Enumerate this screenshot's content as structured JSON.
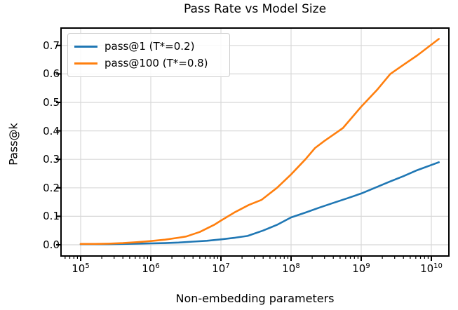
{
  "figure": {
    "title": "Pass Rate vs Model Size",
    "xlabel": "Non-embedding parameters",
    "ylabel": "Pass@k"
  },
  "colors": {
    "pass1_line": "#1f77b4",
    "pass100_line": "#ff7f0e",
    "grid": "#d8d8d8",
    "spine": "#000000",
    "legend_border": "#cccccc",
    "text": "#000000"
  },
  "chart_data": {
    "type": "line",
    "title": "Pass Rate vs Model Size",
    "xlabel": "Non-embedding parameters",
    "ylabel": "Pass@k",
    "xscale": "log",
    "grid": true,
    "legend_position": "upper left",
    "xlim_log": [
      4.72,
      10.25
    ],
    "ylim": [
      -0.0394,
      0.7611
    ],
    "x_tick_base": "10",
    "x_tick_exponents": [
      5,
      6,
      7,
      8,
      9,
      10
    ],
    "y_ticks": [
      "0.0",
      "0.1",
      "0.2",
      "0.3",
      "0.4",
      "0.5",
      "0.6",
      "0.7"
    ],
    "series": [
      {
        "name": "pass@1 (T*=0.2)",
        "color": "#1f77b4",
        "points": [
          [
            100000,
            0.002
          ],
          [
            160000,
            0.002
          ],
          [
            250000,
            0.002
          ],
          [
            400000,
            0.003
          ],
          [
            630000,
            0.004
          ],
          [
            1000000,
            0.005
          ],
          [
            1600000,
            0.006
          ],
          [
            2500000,
            0.008
          ],
          [
            4000000,
            0.011
          ],
          [
            6300000,
            0.014
          ],
          [
            10000000,
            0.019
          ],
          [
            16000000,
            0.025
          ],
          [
            24000000,
            0.031
          ],
          [
            40000000,
            0.05
          ],
          [
            63000000,
            0.07
          ],
          [
            100000000,
            0.096
          ],
          [
            160000000,
            0.113
          ],
          [
            250000000,
            0.13
          ],
          [
            400000000,
            0.147
          ],
          [
            630000000,
            0.163
          ],
          [
            1000000000,
            0.18
          ],
          [
            1600000000,
            0.201
          ],
          [
            2500000000,
            0.221
          ],
          [
            4000000000,
            0.241
          ],
          [
            6300000000,
            0.262
          ],
          [
            12800000000,
            0.29
          ]
        ]
      },
      {
        "name": "pass@100 (T*=0.8)",
        "color": "#ff7f0e",
        "points": [
          [
            100000,
            0.003
          ],
          [
            160000,
            0.003
          ],
          [
            250000,
            0.004
          ],
          [
            400000,
            0.006
          ],
          [
            630000,
            0.009
          ],
          [
            1000000,
            0.013
          ],
          [
            1600000,
            0.018
          ],
          [
            2500000,
            0.025
          ],
          [
            3200000,
            0.029
          ],
          [
            5000000,
            0.045
          ],
          [
            8000000,
            0.07
          ],
          [
            10000000,
            0.085
          ],
          [
            16000000,
            0.115
          ],
          [
            25000000,
            0.14
          ],
          [
            38000000,
            0.158
          ],
          [
            63000000,
            0.2
          ],
          [
            100000000,
            0.247
          ],
          [
            160000000,
            0.3
          ],
          [
            220000000,
            0.34
          ],
          [
            300000000,
            0.365
          ],
          [
            420000000,
            0.39
          ],
          [
            550000000,
            0.41
          ],
          [
            1000000000,
            0.485
          ],
          [
            1700000000,
            0.545
          ],
          [
            2600000000,
            0.6
          ],
          [
            4000000000,
            0.632
          ],
          [
            6300000000,
            0.665
          ],
          [
            12800000000,
            0.723
          ]
        ]
      }
    ]
  }
}
